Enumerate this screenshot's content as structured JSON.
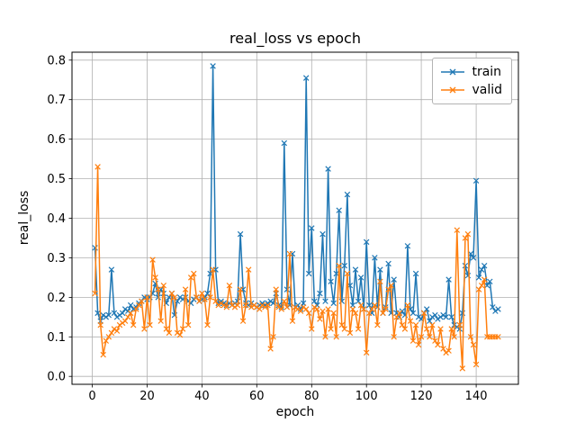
{
  "chart_data": {
    "type": "line",
    "title": "real_loss vs epoch",
    "xlabel": "epoch",
    "ylabel": "real_loss",
    "grid": true,
    "legend_position": "upper right",
    "xlim": [
      -7.4,
      155.4
    ],
    "ylim": [
      -0.02,
      0.82
    ],
    "xticks": [
      0,
      20,
      40,
      60,
      80,
      100,
      120,
      140
    ],
    "yticks": [
      0.0,
      0.1,
      0.2,
      0.3,
      0.4,
      0.5,
      0.6,
      0.7,
      0.8
    ],
    "x_start": 1,
    "x_step": 1,
    "marker": "x",
    "series": [
      {
        "name": "train",
        "color": "#1f77b4",
        "values": [
          0.325,
          0.16,
          0.14,
          0.155,
          0.15,
          0.155,
          0.27,
          0.16,
          0.15,
          0.155,
          0.16,
          0.17,
          0.165,
          0.18,
          0.17,
          0.175,
          0.185,
          0.19,
          0.2,
          0.195,
          0.2,
          0.21,
          0.235,
          0.2,
          0.22,
          0.21,
          0.185,
          0.2,
          0.21,
          0.155,
          0.19,
          0.2,
          0.195,
          0.2,
          0.19,
          0.185,
          0.195,
          0.2,
          0.19,
          0.195,
          0.2,
          0.21,
          0.26,
          0.785,
          0.27,
          0.185,
          0.19,
          0.185,
          0.18,
          0.185,
          0.18,
          0.185,
          0.19,
          0.36,
          0.22,
          0.185,
          0.18,
          0.185,
          0.18,
          0.175,
          0.18,
          0.185,
          0.18,
          0.185,
          0.19,
          0.185,
          0.21,
          0.18,
          0.175,
          0.59,
          0.22,
          0.18,
          0.31,
          0.175,
          0.18,
          0.17,
          0.185,
          0.755,
          0.26,
          0.375,
          0.19,
          0.18,
          0.21,
          0.36,
          0.19,
          0.525,
          0.24,
          0.185,
          0.26,
          0.42,
          0.19,
          0.28,
          0.46,
          0.23,
          0.18,
          0.27,
          0.19,
          0.25,
          0.17,
          0.34,
          0.18,
          0.16,
          0.3,
          0.175,
          0.27,
          0.16,
          0.175,
          0.285,
          0.16,
          0.245,
          0.16,
          0.15,
          0.165,
          0.155,
          0.33,
          0.17,
          0.16,
          0.26,
          0.15,
          0.145,
          0.16,
          0.17,
          0.14,
          0.15,
          0.155,
          0.145,
          0.15,
          0.155,
          0.15,
          0.245,
          0.15,
          0.13,
          0.125,
          0.12,
          0.16,
          0.28,
          0.255,
          0.31,
          0.3,
          0.495,
          0.25,
          0.27,
          0.28,
          0.23,
          0.24,
          0.175,
          0.165,
          0.17
        ]
      },
      {
        "name": "valid",
        "color": "#ff7f0e",
        "values": [
          0.21,
          0.53,
          0.13,
          0.055,
          0.09,
          0.1,
          0.11,
          0.12,
          0.115,
          0.13,
          0.135,
          0.14,
          0.15,
          0.16,
          0.13,
          0.17,
          0.18,
          0.19,
          0.12,
          0.2,
          0.13,
          0.295,
          0.25,
          0.22,
          0.14,
          0.23,
          0.12,
          0.11,
          0.21,
          0.2,
          0.11,
          0.105,
          0.12,
          0.22,
          0.13,
          0.25,
          0.26,
          0.2,
          0.19,
          0.21,
          0.195,
          0.13,
          0.2,
          0.27,
          0.19,
          0.18,
          0.185,
          0.18,
          0.175,
          0.23,
          0.18,
          0.175,
          0.18,
          0.22,
          0.14,
          0.18,
          0.27,
          0.175,
          0.18,
          0.175,
          0.17,
          0.18,
          0.175,
          0.18,
          0.07,
          0.1,
          0.22,
          0.175,
          0.17,
          0.19,
          0.175,
          0.31,
          0.14,
          0.175,
          0.17,
          0.165,
          0.175,
          0.17,
          0.16,
          0.12,
          0.175,
          0.17,
          0.145,
          0.165,
          0.1,
          0.17,
          0.12,
          0.16,
          0.1,
          0.28,
          0.13,
          0.12,
          0.26,
          0.11,
          0.17,
          0.16,
          0.12,
          0.18,
          0.17,
          0.06,
          0.16,
          0.17,
          0.18,
          0.13,
          0.24,
          0.16,
          0.17,
          0.22,
          0.23,
          0.1,
          0.15,
          0.16,
          0.13,
          0.12,
          0.18,
          0.14,
          0.09,
          0.13,
          0.08,
          0.1,
          0.16,
          0.12,
          0.1,
          0.13,
          0.09,
          0.08,
          0.12,
          0.07,
          0.06,
          0.065,
          0.12,
          0.1,
          0.37,
          0.13,
          0.02,
          0.35,
          0.36,
          0.1,
          0.08,
          0.03,
          0.22,
          0.23,
          0.245,
          0.1,
          0.1,
          0.1,
          0.1,
          0.1
        ]
      }
    ],
    "style": {
      "grid_color": "#b0b0b0",
      "spine_color": "#000000",
      "tick_label_size": 13,
      "line_width": 1.5
    }
  }
}
